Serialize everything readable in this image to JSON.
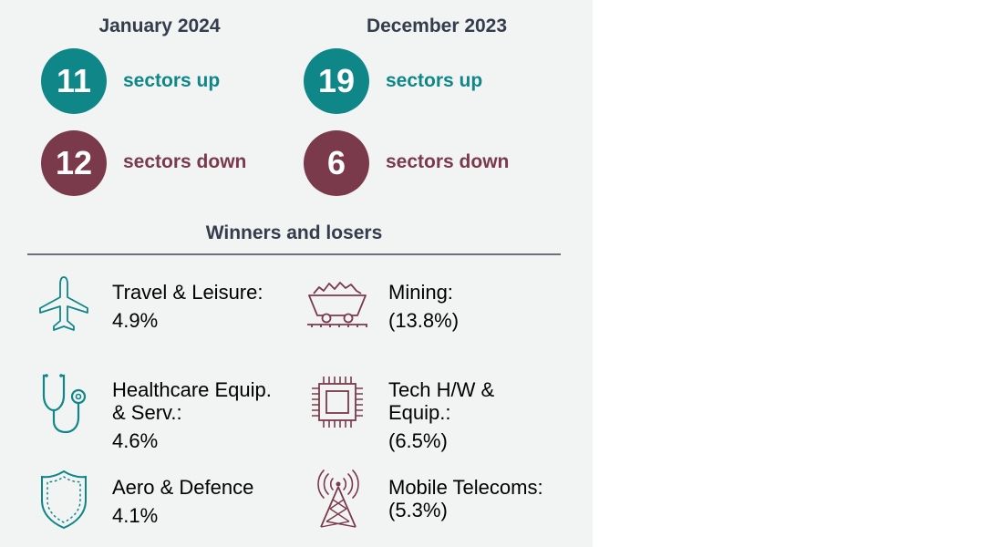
{
  "summary": [
    {
      "month": "January 2024",
      "up_count": "11",
      "up_label": "sectors up",
      "down_count": "12",
      "down_label": "sectors down"
    },
    {
      "month": "December 2023",
      "up_count": "19",
      "up_label": "sectors up",
      "down_count": "6",
      "down_label": "sectors down"
    }
  ],
  "section_title": "Winners and losers",
  "winners": [
    {
      "icon": "airplane-icon",
      "name_lines": [
        "Travel & Leisure:"
      ],
      "value": "4.9%"
    },
    {
      "icon": "stethoscope-icon",
      "name_lines": [
        "Healthcare Equip.",
        "& Serv.:"
      ],
      "value": "4.6%"
    },
    {
      "icon": "shield-icon",
      "name_lines": [
        "Aero & Defence"
      ],
      "value": "4.1%"
    }
  ],
  "losers": [
    {
      "icon": "mining-cart-icon",
      "name_lines": [
        "Mining:"
      ],
      "value": "(13.8%)"
    },
    {
      "icon": "microchip-icon",
      "name_lines": [
        "Tech H/W &",
        "Equip.:"
      ],
      "value": "(6.5%)"
    },
    {
      "icon": "cell-tower-icon",
      "name_lines": [
        "Mobile Telecoms:"
      ],
      "value": "(5.3%)"
    }
  ],
  "colors": {
    "up": "#0f8688",
    "down": "#7b3a4b",
    "heading": "#333d4b",
    "panel": "#f2f4f4"
  }
}
